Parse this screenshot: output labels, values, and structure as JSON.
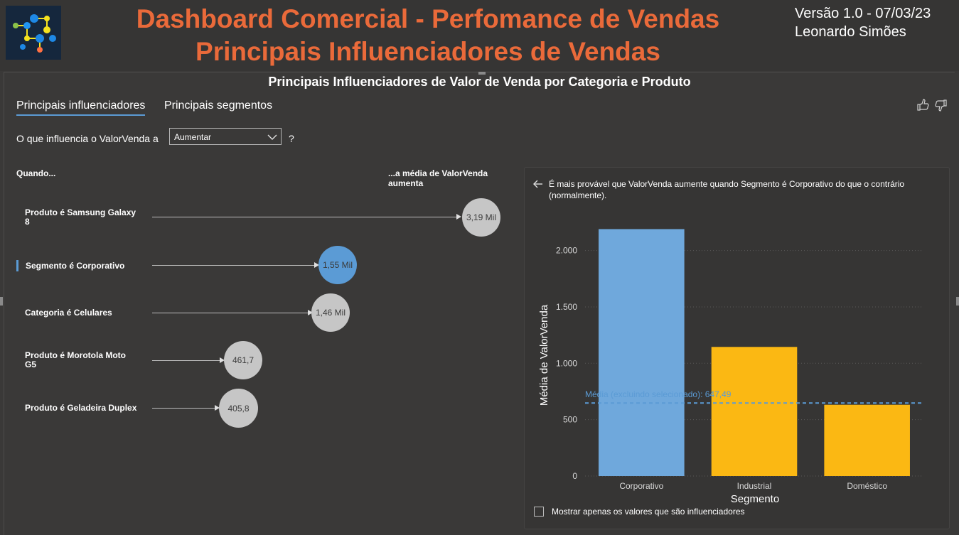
{
  "header": {
    "title_line1": "Dashboard Comercial - Perfomance de Vendas",
    "title_line2": "Principais Influenciadores de Vendas",
    "version": "Versão 1.0 - 07/03/23",
    "author": "Leonardo Simões",
    "title_color": "#ea6a3a"
  },
  "visual": {
    "title": "Principais Influenciadores de Valor de Venda por Categoria e Produto",
    "tabs": [
      {
        "label": "Principais influenciadores",
        "active": true
      },
      {
        "label": "Principais segmentos",
        "active": false
      }
    ],
    "icons": [
      "thumbs-up-icon",
      "thumbs-down-icon"
    ],
    "question_label": "O que influencia o ValorVenda a",
    "dropdown_value": "Aumentar",
    "question_mark": "?",
    "col_when": "Quando...",
    "col_avg": "...a média de ValorVenda aumenta"
  },
  "influencers": [
    {
      "label": "Produto é Samsung Galaxy 8",
      "value": "3,19 Mil",
      "selected": false
    },
    {
      "label": "Segmento é Corporativo",
      "value": "1,55 Mil",
      "selected": true
    },
    {
      "label": "Categoria é Celulares",
      "value": "1,46 Mil",
      "selected": false
    },
    {
      "label": "Produto é Morotola Moto G5",
      "value": "461,7",
      "selected": false
    },
    {
      "label": "Produto é Geladeira Duplex",
      "value": "405,8",
      "selected": false
    }
  ],
  "detail": {
    "text": "É mais provável que ValorVenda aumente quando Segmento é Corporativo do que o contrário (normalmente).",
    "checkbox_label": "Mostrar apenas os valores que são influenciadores",
    "checkbox_checked": false
  },
  "chart_data": {
    "type": "bar",
    "categories": [
      "Corporativo",
      "Industrial",
      "Doméstico"
    ],
    "values": [
      2190,
      1145,
      632
    ],
    "colors": [
      "#6fa8dc",
      "#fbb813",
      "#fbb813"
    ],
    "xlabel": "Segmento",
    "ylabel": "Média de ValorVenda",
    "ylim": [
      0,
      2300
    ],
    "yticks": [
      0,
      500,
      1000,
      1500,
      2000
    ],
    "ytick_labels": [
      "0",
      "500",
      "1.000",
      "1.500",
      "2.000"
    ],
    "grid": true,
    "reference_line": {
      "label": "Média (excluindo selecionado): 647,49",
      "value": 647.49,
      "color": "#5b9bd5"
    }
  }
}
